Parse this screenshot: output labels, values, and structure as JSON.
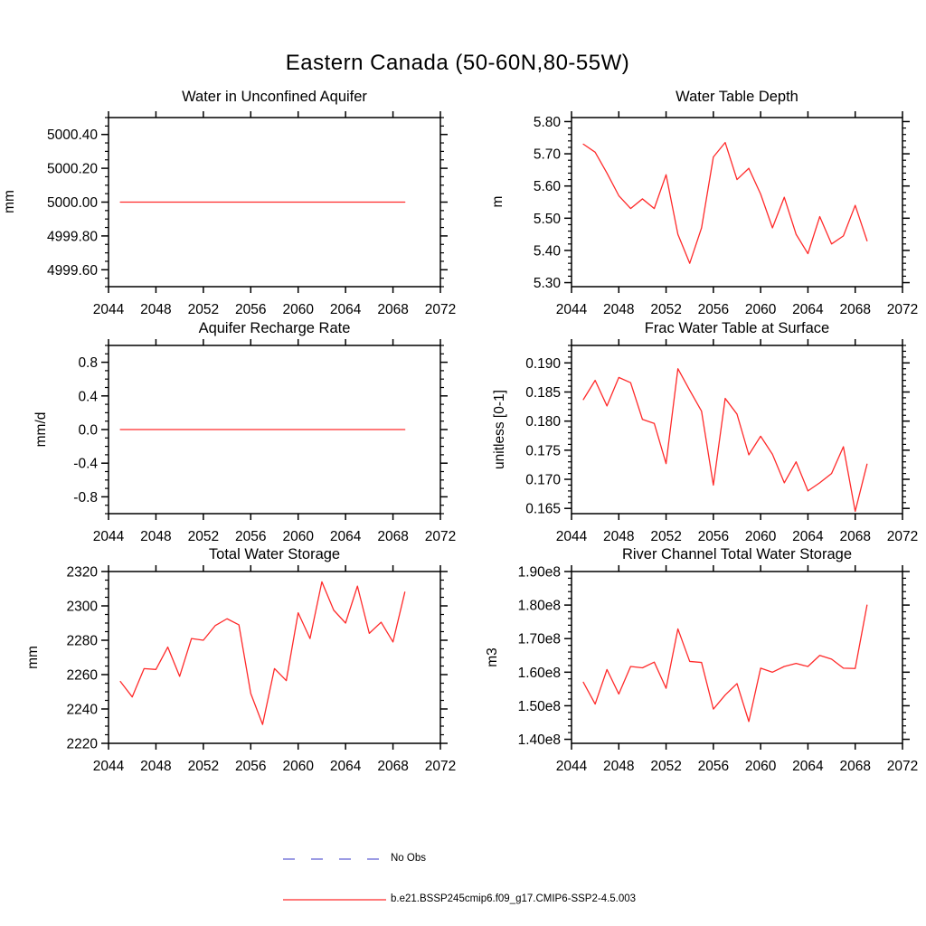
{
  "page": {
    "title": "Eastern Canada (50-60N,80-55W)"
  },
  "legend": {
    "items": [
      {
        "label": "No Obs",
        "style": "dashed",
        "color": "#7c7cdb"
      },
      {
        "label": "b.e21.BSSP245cmip6.f09_g17.CMIP6-SSP2-4.5.003",
        "style": "solid",
        "color": "#ff2a2a"
      }
    ]
  },
  "chart_data": [
    {
      "type": "line",
      "title": "Water in Unconfined Aquifer",
      "ylabel": "mm",
      "line_color": "#ff2a2a",
      "xlim": [
        2044,
        2072
      ],
      "ylim": [
        4999.5,
        5000.5
      ],
      "xticks": [
        2044,
        2048,
        2052,
        2056,
        2060,
        2064,
        2068,
        2072
      ],
      "xtick_labels": [
        "2044",
        "2048",
        "2052",
        "2056",
        "2060",
        "2064",
        "2068",
        "2072"
      ],
      "yticks": [
        4999.6,
        4999.8,
        5000.0,
        5000.2,
        5000.4
      ],
      "ytick_labels": [
        "4999.60",
        "4999.80",
        "5000.00",
        "5000.20",
        "5000.40"
      ],
      "yminor_step": 0.05,
      "x": [
        2045,
        2046,
        2047,
        2048,
        2049,
        2050,
        2051,
        2052,
        2053,
        2054,
        2055,
        2056,
        2057,
        2058,
        2059,
        2060,
        2061,
        2062,
        2063,
        2064,
        2065,
        2066,
        2067,
        2068,
        2069
      ],
      "values": [
        5000,
        5000,
        5000,
        5000,
        5000,
        5000,
        5000,
        5000,
        5000,
        5000,
        5000,
        5000,
        5000,
        5000,
        5000,
        5000,
        5000,
        5000,
        5000,
        5000,
        5000,
        5000,
        5000,
        5000,
        5000
      ]
    },
    {
      "type": "line",
      "title": "Water Table Depth",
      "ylabel": "m",
      "line_color": "#ff2a2a",
      "xlim": [
        2044,
        2072
      ],
      "ylim": [
        5.2875,
        5.8125
      ],
      "xticks": [
        2044,
        2048,
        2052,
        2056,
        2060,
        2064,
        2068,
        2072
      ],
      "xtick_labels": [
        "2044",
        "2048",
        "2052",
        "2056",
        "2060",
        "2064",
        "2068",
        "2072"
      ],
      "yticks": [
        5.3,
        5.4,
        5.5,
        5.6,
        5.7,
        5.8
      ],
      "ytick_labels": [
        "5.30",
        "5.40",
        "5.50",
        "5.60",
        "5.70",
        "5.80"
      ],
      "yminor_step": 0.02,
      "x": [
        2045,
        2046,
        2047,
        2048,
        2049,
        2050,
        2051,
        2052,
        2053,
        2054,
        2055,
        2056,
        2057,
        2058,
        2059,
        2060,
        2061,
        2062,
        2063,
        2064,
        2065,
        2066,
        2067,
        2068,
        2069
      ],
      "values": [
        5.73,
        5.705,
        5.64,
        5.57,
        5.53,
        5.56,
        5.53,
        5.635,
        5.45,
        5.36,
        5.47,
        5.69,
        5.735,
        5.62,
        5.655,
        5.575,
        5.47,
        5.565,
        5.45,
        5.39,
        5.505,
        5.42,
        5.445,
        5.54,
        5.43
      ]
    },
    {
      "type": "line",
      "title": "Aquifer Recharge Rate",
      "ylabel": "mm/d",
      "line_color": "#ff2a2a",
      "xlim": [
        2044,
        2072
      ],
      "ylim": [
        -1.0,
        1.0
      ],
      "xticks": [
        2044,
        2048,
        2052,
        2056,
        2060,
        2064,
        2068,
        2072
      ],
      "xtick_labels": [
        "2044",
        "2048",
        "2052",
        "2056",
        "2060",
        "2064",
        "2068",
        "2072"
      ],
      "yticks": [
        -0.8,
        -0.4,
        0.0,
        0.4,
        0.8
      ],
      "ytick_labels": [
        "-0.8",
        "-0.4",
        "0.0",
        "0.4",
        "0.8"
      ],
      "yminor_step": 0.1,
      "x": [
        2045,
        2046,
        2047,
        2048,
        2049,
        2050,
        2051,
        2052,
        2053,
        2054,
        2055,
        2056,
        2057,
        2058,
        2059,
        2060,
        2061,
        2062,
        2063,
        2064,
        2065,
        2066,
        2067,
        2068,
        2069
      ],
      "values": [
        0,
        0,
        0,
        0,
        0,
        0,
        0,
        0,
        0,
        0,
        0,
        0,
        0,
        0,
        0,
        0,
        0,
        0,
        0,
        0,
        0,
        0,
        0,
        0,
        0
      ]
    },
    {
      "type": "line",
      "title": "Frac Water Table at Surface",
      "ylabel": "unitless [0-1]",
      "line_color": "#ff2a2a",
      "xlim": [
        2044,
        2072
      ],
      "ylim": [
        0.1641,
        0.193
      ],
      "xticks": [
        2044,
        2048,
        2052,
        2056,
        2060,
        2064,
        2068,
        2072
      ],
      "xtick_labels": [
        "2044",
        "2048",
        "2052",
        "2056",
        "2060",
        "2064",
        "2068",
        "2072"
      ],
      "yticks": [
        0.165,
        0.17,
        0.175,
        0.18,
        0.185,
        0.19
      ],
      "ytick_labels": [
        "0.165",
        "0.170",
        "0.175",
        "0.180",
        "0.185",
        "0.190"
      ],
      "yminor_step": 0.001,
      "x": [
        2045,
        2046,
        2047,
        2048,
        2049,
        2050,
        2051,
        2052,
        2053,
        2054,
        2055,
        2056,
        2057,
        2058,
        2059,
        2060,
        2061,
        2062,
        2063,
        2064,
        2065,
        2066,
        2067,
        2068,
        2069
      ],
      "values": [
        0.1837,
        0.187,
        0.1826,
        0.1875,
        0.1866,
        0.1803,
        0.1796,
        0.1727,
        0.189,
        0.1853,
        0.1817,
        0.169,
        0.1839,
        0.1812,
        0.1742,
        0.1774,
        0.1743,
        0.1694,
        0.173,
        0.168,
        0.1694,
        0.171,
        0.1756,
        0.1645,
        0.1726
      ]
    },
    {
      "type": "line",
      "title": "Total Water Storage",
      "ylabel": "mm",
      "line_color": "#ff2a2a",
      "xlim": [
        2044,
        2072
      ],
      "ylim": [
        2220,
        2320
      ],
      "xticks": [
        2044,
        2048,
        2052,
        2056,
        2060,
        2064,
        2068,
        2072
      ],
      "xtick_labels": [
        "2044",
        "2048",
        "2052",
        "2056",
        "2060",
        "2064",
        "2068",
        "2072"
      ],
      "yticks": [
        2220,
        2240,
        2260,
        2280,
        2300,
        2320
      ],
      "ytick_labels": [
        "2220",
        "2240",
        "2260",
        "2280",
        "2300",
        "2320"
      ],
      "yminor_step": 5,
      "x": [
        2045,
        2046,
        2047,
        2048,
        2049,
        2050,
        2051,
        2052,
        2053,
        2054,
        2055,
        2056,
        2057,
        2058,
        2059,
        2060,
        2061,
        2062,
        2063,
        2064,
        2065,
        2066,
        2067,
        2068,
        2069
      ],
      "values": [
        2256,
        2247,
        2263.5,
        2263,
        2276,
        2259,
        2281,
        2280,
        2288.5,
        2292.5,
        2289,
        2249,
        2231,
        2263.5,
        2256.5,
        2296,
        2281,
        2314,
        2297.5,
        2290,
        2311.5,
        2284,
        2290.5,
        2279,
        2308
      ]
    },
    {
      "type": "line",
      "title": "River Channel Total Water Storage",
      "ylabel": "m3",
      "line_color": "#ff2a2a",
      "xlim": [
        2044,
        2072
      ],
      "ylim": [
        138800000,
        190000000
      ],
      "xticks": [
        2044,
        2048,
        2052,
        2056,
        2060,
        2064,
        2068,
        2072
      ],
      "xtick_labels": [
        "2044",
        "2048",
        "2052",
        "2056",
        "2060",
        "2064",
        "2068",
        "2072"
      ],
      "yticks": [
        140000000,
        150000000,
        160000000,
        170000000,
        180000000,
        190000000
      ],
      "ytick_labels": [
        "1.40e8",
        "1.50e8",
        "1.60e8",
        "1.70e8",
        "1.80e8",
        "1.90e8"
      ],
      "yminor_step": 2000000,
      "x": [
        2045,
        2046,
        2047,
        2048,
        2049,
        2050,
        2051,
        2052,
        2053,
        2054,
        2055,
        2056,
        2057,
        2058,
        2059,
        2060,
        2061,
        2062,
        2063,
        2064,
        2065,
        2066,
        2067,
        2068,
        2069
      ],
      "values": [
        157000000,
        150500000,
        160800000,
        153500000,
        161700000,
        161300000,
        163000000,
        155200000,
        172900000,
        163200000,
        162900000,
        149000000,
        153200000,
        156600000,
        145300000,
        161200000,
        160000000,
        161700000,
        162600000,
        161700000,
        165000000,
        163900000,
        161200000,
        161100000,
        180000000
      ]
    }
  ]
}
